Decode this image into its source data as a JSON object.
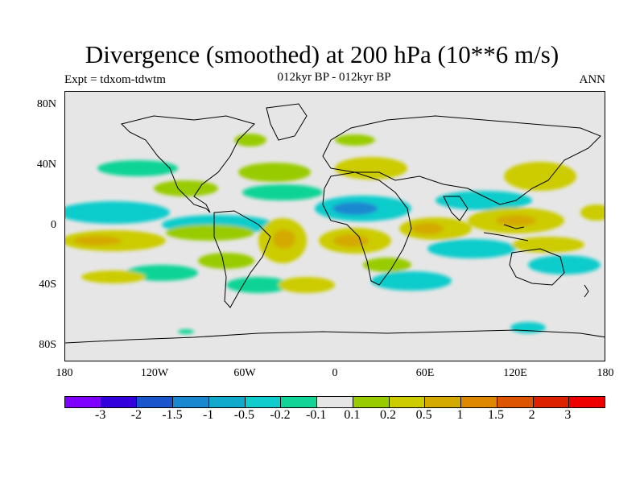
{
  "title": "Divergence (smoothed) at 200 hPa (10**6 m/s)",
  "subtitle_left": "Expt = tdxom-tdwtm",
  "subtitle_center": "012kyr BP - 012kyr BP",
  "subtitle_right": "ANN",
  "y_axis": {
    "labels": [
      "80N",
      "40N",
      "0",
      "40S",
      "80S"
    ]
  },
  "x_axis": {
    "labels": [
      "180",
      "120W",
      "60W",
      "0",
      "60E",
      "120E",
      "180"
    ]
  },
  "colorbar": {
    "colors": [
      "#7f00ff",
      "#3300dd",
      "#1a55cc",
      "#1a88d0",
      "#11aacc",
      "#11cccc",
      "#11d496",
      "#e6e6e6",
      "#99cc00",
      "#cccc00",
      "#d4aa00",
      "#dd8800",
      "#dd5500",
      "#dd2200",
      "#ee0000"
    ],
    "labels": [
      "-3",
      "-2",
      "-1.5",
      "-1",
      "-0.5",
      "-0.2",
      "-0.1",
      "0.1",
      "0.2",
      "0.5",
      "1",
      "1.5",
      "2",
      "3"
    ]
  },
  "legend_palette_note": "",
  "map": {
    "background_color": "#e6e6e6",
    "coastline_color": "#000000"
  }
}
